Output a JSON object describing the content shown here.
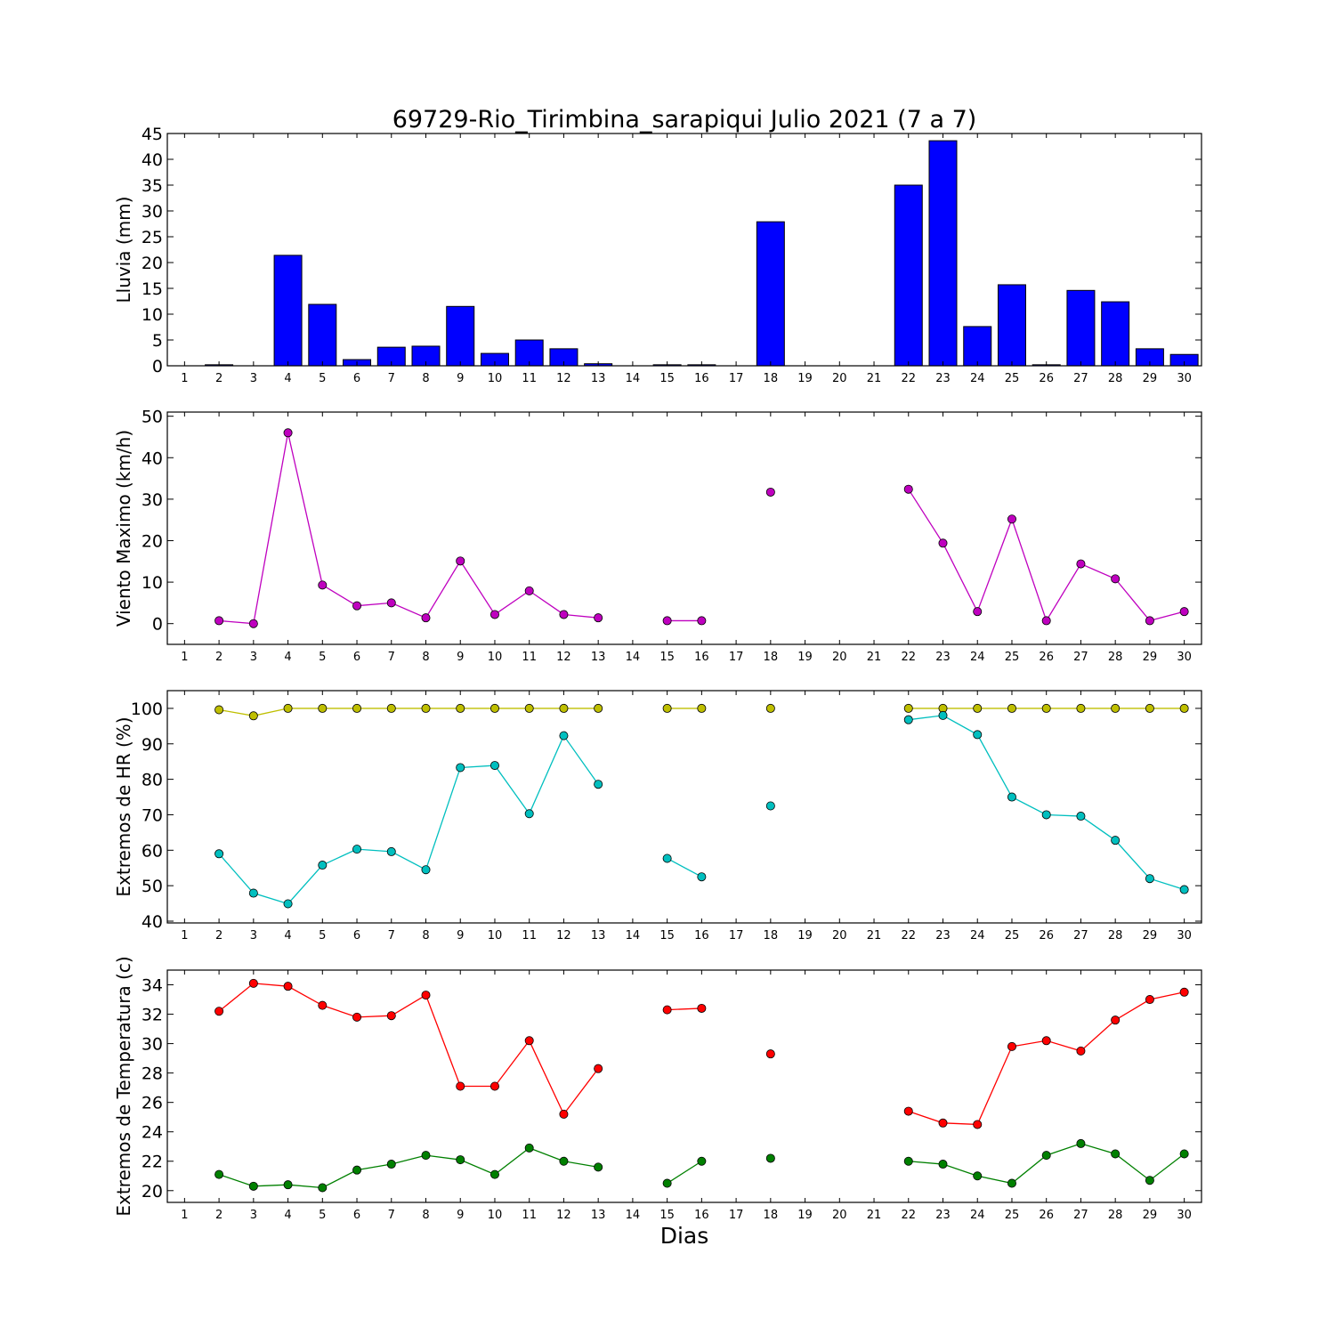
{
  "title": "69729-Rio_Tirimbina_sarapiqui Julio 2021  (7 a 7)",
  "xlabel": "Dias",
  "colors": {
    "rain": "#0000ff",
    "wind": "#bf00bf",
    "hr_max": "#bfbf00",
    "hr_min": "#00bfbf",
    "t_max": "#ff0000",
    "t_min": "#008000"
  },
  "chart_data": [
    {
      "type": "bar",
      "ylabel": "Lluvia (mm)",
      "ylim": [
        0,
        45
      ],
      "yticks": [
        0,
        5,
        10,
        15,
        20,
        25,
        30,
        35,
        40,
        45
      ],
      "x": [
        1,
        2,
        3,
        4,
        5,
        6,
        7,
        8,
        9,
        10,
        11,
        12,
        13,
        14,
        15,
        16,
        17,
        18,
        19,
        20,
        21,
        22,
        23,
        24,
        25,
        26,
        27,
        28,
        29,
        30
      ],
      "xticks": [
        "1",
        "2",
        "3",
        "4",
        "5",
        "6",
        "7",
        "8",
        "9",
        "10",
        "11",
        "12",
        "13",
        "14",
        "15",
        "16",
        "17",
        "18",
        "19",
        "20",
        "21",
        "22",
        "23",
        "24",
        "25",
        "26",
        "27",
        "28",
        "29",
        "30"
      ],
      "series": [
        {
          "values": [
            null,
            0.2,
            0,
            21.4,
            11.9,
            1.2,
            3.6,
            3.8,
            11.5,
            2.4,
            5.0,
            3.3,
            0.4,
            null,
            0.2,
            0.2,
            null,
            27.9,
            null,
            null,
            null,
            35.0,
            43.6,
            7.6,
            15.7,
            0.2,
            14.6,
            12.4,
            3.3,
            2.2
          ]
        }
      ]
    },
    {
      "type": "line",
      "ylabel": "Viento Maximo (km/h)",
      "ylim": [
        -5,
        51
      ],
      "yticks": [
        0,
        10,
        20,
        30,
        40,
        50
      ],
      "x": [
        1,
        2,
        3,
        4,
        5,
        6,
        7,
        8,
        9,
        10,
        11,
        12,
        13,
        14,
        15,
        16,
        17,
        18,
        19,
        20,
        21,
        22,
        23,
        24,
        25,
        26,
        27,
        28,
        29,
        30
      ],
      "xticks": [
        "1",
        "2",
        "3",
        "4",
        "5",
        "6",
        "7",
        "8",
        "9",
        "10",
        "11",
        "12",
        "13",
        "14",
        "15",
        "16",
        "17",
        "18",
        "19",
        "20",
        "21",
        "22",
        "23",
        "24",
        "25",
        "26",
        "27",
        "28",
        "29",
        "30"
      ],
      "series": [
        {
          "values": [
            null,
            0.7,
            0,
            46.0,
            9.3,
            4.3,
            5.0,
            1.4,
            15.1,
            2.2,
            7.9,
            2.2,
            1.4,
            null,
            0.7,
            0.7,
            null,
            31.7,
            null,
            null,
            null,
            32.4,
            19.4,
            2.9,
            25.2,
            0.7,
            14.4,
            10.8,
            0.7,
            2.9
          ]
        }
      ]
    },
    {
      "type": "line",
      "ylabel": "Extremos de HR (%)",
      "ylim": [
        39.5,
        105
      ],
      "yticks": [
        40,
        50,
        60,
        70,
        80,
        90,
        100
      ],
      "x": [
        1,
        2,
        3,
        4,
        5,
        6,
        7,
        8,
        9,
        10,
        11,
        12,
        13,
        14,
        15,
        16,
        17,
        18,
        19,
        20,
        21,
        22,
        23,
        24,
        25,
        26,
        27,
        28,
        29,
        30
      ],
      "xticks": [
        "1",
        "2",
        "3",
        "4",
        "5",
        "6",
        "7",
        "8",
        "9",
        "10",
        "11",
        "12",
        "13",
        "14",
        "15",
        "16",
        "17",
        "18",
        "19",
        "20",
        "21",
        "22",
        "23",
        "24",
        "25",
        "26",
        "27",
        "28",
        "29",
        "30"
      ],
      "series": [
        {
          "values": [
            null,
            99.6,
            97.9,
            100,
            100,
            100,
            100,
            100,
            100,
            100,
            100,
            100,
            100,
            null,
            100,
            100,
            null,
            100,
            null,
            null,
            null,
            100,
            100,
            100,
            100,
            100,
            100,
            100,
            100,
            100
          ]
        },
        {
          "values": [
            null,
            59.0,
            47.9,
            44.9,
            55.8,
            60.3,
            59.6,
            54.5,
            83.3,
            83.9,
            70.3,
            92.3,
            78.6,
            null,
            57.7,
            52.5,
            null,
            72.5,
            null,
            null,
            null,
            96.8,
            98.0,
            92.6,
            75.0,
            70.0,
            69.6,
            62.8,
            52.0,
            48.9
          ]
        }
      ]
    },
    {
      "type": "line",
      "ylabel": "Extremos de Temperatura (c)",
      "ylim": [
        19.2,
        35
      ],
      "yticks": [
        20,
        22,
        24,
        26,
        28,
        30,
        32,
        34
      ],
      "x": [
        1,
        2,
        3,
        4,
        5,
        6,
        7,
        8,
        9,
        10,
        11,
        12,
        13,
        14,
        15,
        16,
        17,
        18,
        19,
        20,
        21,
        22,
        23,
        24,
        25,
        26,
        27,
        28,
        29,
        30
      ],
      "xticks": [
        "1",
        "2",
        "3",
        "4",
        "5",
        "6",
        "7",
        "8",
        "9",
        "10",
        "11",
        "12",
        "13",
        "14",
        "15",
        "16",
        "17",
        "18",
        "19",
        "20",
        "21",
        "22",
        "23",
        "24",
        "25",
        "26",
        "27",
        "28",
        "29",
        "30"
      ],
      "series": [
        {
          "values": [
            null,
            32.2,
            34.1,
            33.9,
            32.6,
            31.8,
            31.9,
            33.3,
            27.1,
            27.1,
            30.2,
            25.2,
            28.3,
            null,
            32.3,
            32.4,
            null,
            29.3,
            null,
            null,
            null,
            25.4,
            24.6,
            24.5,
            29.8,
            30.2,
            29.5,
            31.6,
            33.0,
            33.5
          ]
        },
        {
          "values": [
            null,
            21.1,
            20.3,
            20.4,
            20.2,
            21.4,
            21.8,
            22.4,
            22.1,
            21.1,
            22.9,
            22.0,
            21.6,
            null,
            20.5,
            22.0,
            null,
            22.2,
            null,
            null,
            null,
            22.0,
            21.8,
            21.0,
            20.5,
            22.4,
            23.2,
            22.5,
            20.7,
            22.5
          ]
        }
      ]
    }
  ]
}
